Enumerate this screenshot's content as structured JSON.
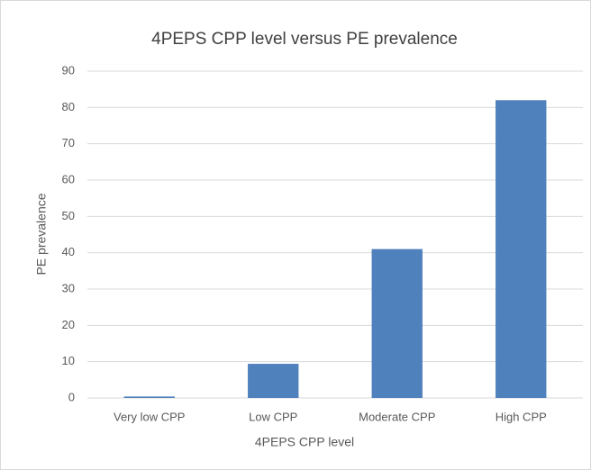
{
  "chart_data": {
    "type": "bar",
    "title": "4PEPS CPP level versus PE prevalence",
    "x_label": "4PEPS CPP level",
    "y_label": "PE prevalence",
    "categories": [
      "Very low CPP",
      "Low CPP",
      "Moderate CPP",
      "High CPP"
    ],
    "values": [
      0.4,
      9.4,
      41,
      82
    ],
    "color": "#4f81bd",
    "ylim": [
      0,
      90
    ],
    "yticks": [
      0,
      10,
      20,
      30,
      40,
      50,
      60,
      70,
      80,
      90
    ],
    "grid": true
  }
}
